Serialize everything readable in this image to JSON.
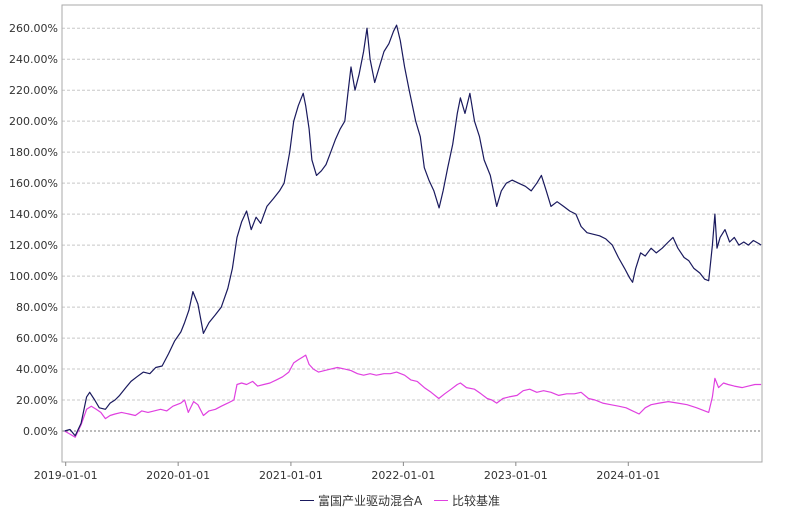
{
  "chart_data": {
    "type": "line",
    "title": "",
    "xlabel": "",
    "ylabel": "",
    "ylim": [
      -0.2,
      2.75
    ],
    "xlim": [
      "2018-12-20",
      "2025-03-10"
    ],
    "grid": true,
    "legend_position": "bottom-center",
    "x_tick_labels": [
      "2019-01-01",
      "2020-01-01",
      "2021-01-01",
      "2022-01-01",
      "2023-01-01",
      "2024-01-01"
    ],
    "y_tick_labels": [
      "0.00%",
      "20.00%",
      "40.00%",
      "60.00%",
      "80.00%",
      "100.00%",
      "120.00%",
      "140.00%",
      "160.00%",
      "180.00%",
      "200.00%",
      "220.00%",
      "240.00%",
      "260.00%"
    ],
    "series": [
      {
        "name": "富国产业驱动混合A",
        "color": "#1a1a5e",
        "points": [
          [
            "2018-12-28",
            0.0
          ],
          [
            "2019-01-15",
            0.01
          ],
          [
            "2019-02-01",
            -0.03
          ],
          [
            "2019-02-20",
            0.05
          ],
          [
            "2019-03-10",
            0.22
          ],
          [
            "2019-03-20",
            0.25
          ],
          [
            "2019-04-05",
            0.2
          ],
          [
            "2019-04-20",
            0.15
          ],
          [
            "2019-05-10",
            0.14
          ],
          [
            "2019-05-25",
            0.18
          ],
          [
            "2019-06-10",
            0.2
          ],
          [
            "2019-06-25",
            0.23
          ],
          [
            "2019-07-15",
            0.28
          ],
          [
            "2019-08-01",
            0.32
          ],
          [
            "2019-08-20",
            0.35
          ],
          [
            "2019-09-10",
            0.38
          ],
          [
            "2019-10-01",
            0.37
          ],
          [
            "2019-10-20",
            0.41
          ],
          [
            "2019-11-10",
            0.42
          ],
          [
            "2019-12-01",
            0.5
          ],
          [
            "2019-12-20",
            0.58
          ],
          [
            "2020-01-10",
            0.64
          ],
          [
            "2020-01-22",
            0.7
          ],
          [
            "2020-02-05",
            0.78
          ],
          [
            "2020-02-18",
            0.9
          ],
          [
            "2020-03-05",
            0.82
          ],
          [
            "2020-03-23",
            0.63
          ],
          [
            "2020-04-10",
            0.7
          ],
          [
            "2020-05-01",
            0.75
          ],
          [
            "2020-05-20",
            0.8
          ],
          [
            "2020-06-10",
            0.92
          ],
          [
            "2020-06-25",
            1.05
          ],
          [
            "2020-07-10",
            1.25
          ],
          [
            "2020-07-25",
            1.35
          ],
          [
            "2020-08-10",
            1.42
          ],
          [
            "2020-08-25",
            1.3
          ],
          [
            "2020-09-10",
            1.38
          ],
          [
            "2020-09-25",
            1.34
          ],
          [
            "2020-10-15",
            1.45
          ],
          [
            "2020-11-05",
            1.5
          ],
          [
            "2020-11-25",
            1.55
          ],
          [
            "2020-12-10",
            1.6
          ],
          [
            "2020-12-28",
            1.8
          ],
          [
            "2021-01-10",
            2.0
          ],
          [
            "2021-01-25",
            2.1
          ],
          [
            "2021-02-10",
            2.18
          ],
          [
            "2021-02-18",
            2.1
          ],
          [
            "2021-03-01",
            1.95
          ],
          [
            "2021-03-10",
            1.75
          ],
          [
            "2021-03-25",
            1.65
          ],
          [
            "2021-04-10",
            1.68
          ],
          [
            "2021-04-25",
            1.72
          ],
          [
            "2021-05-10",
            1.8
          ],
          [
            "2021-05-25",
            1.88
          ],
          [
            "2021-06-10",
            1.95
          ],
          [
            "2021-06-25",
            2.0
          ],
          [
            "2021-07-05",
            2.18
          ],
          [
            "2021-07-15",
            2.35
          ],
          [
            "2021-07-28",
            2.2
          ],
          [
            "2021-08-10",
            2.3
          ],
          [
            "2021-08-25",
            2.45
          ],
          [
            "2021-09-05",
            2.6
          ],
          [
            "2021-09-15",
            2.4
          ],
          [
            "2021-09-30",
            2.25
          ],
          [
            "2021-10-15",
            2.35
          ],
          [
            "2021-10-30",
            2.45
          ],
          [
            "2021-11-15",
            2.5
          ],
          [
            "2021-11-30",
            2.58
          ],
          [
            "2021-12-10",
            2.62
          ],
          [
            "2021-12-22",
            2.52
          ],
          [
            "2022-01-05",
            2.35
          ],
          [
            "2022-01-20",
            2.2
          ],
          [
            "2022-02-10",
            2.0
          ],
          [
            "2022-02-25",
            1.9
          ],
          [
            "2022-03-10",
            1.7
          ],
          [
            "2022-03-25",
            1.62
          ],
          [
            "2022-04-10",
            1.55
          ],
          [
            "2022-04-27",
            1.44
          ],
          [
            "2022-05-10",
            1.55
          ],
          [
            "2022-05-25",
            1.7
          ],
          [
            "2022-06-10",
            1.85
          ],
          [
            "2022-06-25",
            2.05
          ],
          [
            "2022-07-05",
            2.15
          ],
          [
            "2022-07-20",
            2.05
          ],
          [
            "2022-08-05",
            2.18
          ],
          [
            "2022-08-20",
            2.0
          ],
          [
            "2022-09-05",
            1.9
          ],
          [
            "2022-09-20",
            1.75
          ],
          [
            "2022-10-10",
            1.65
          ],
          [
            "2022-10-31",
            1.45
          ],
          [
            "2022-11-15",
            1.55
          ],
          [
            "2022-12-01",
            1.6
          ],
          [
            "2022-12-20",
            1.62
          ],
          [
            "2023-01-10",
            1.6
          ],
          [
            "2023-02-01",
            1.58
          ],
          [
            "2023-02-20",
            1.55
          ],
          [
            "2023-03-10",
            1.6
          ],
          [
            "2023-03-25",
            1.65
          ],
          [
            "2023-04-10",
            1.55
          ],
          [
            "2023-04-25",
            1.45
          ],
          [
            "2023-05-15",
            1.48
          ],
          [
            "2023-06-05",
            1.45
          ],
          [
            "2023-06-25",
            1.42
          ],
          [
            "2023-07-15",
            1.4
          ],
          [
            "2023-08-01",
            1.32
          ],
          [
            "2023-08-20",
            1.28
          ],
          [
            "2023-09-10",
            1.27
          ],
          [
            "2023-09-30",
            1.26
          ],
          [
            "2023-10-20",
            1.24
          ],
          [
            "2023-11-10",
            1.2
          ],
          [
            "2023-11-30",
            1.12
          ],
          [
            "2023-12-20",
            1.05
          ],
          [
            "2024-01-05",
            0.99
          ],
          [
            "2024-01-15",
            0.96
          ],
          [
            "2024-01-25",
            1.05
          ],
          [
            "2024-02-10",
            1.15
          ],
          [
            "2024-02-25",
            1.13
          ],
          [
            "2024-03-15",
            1.18
          ],
          [
            "2024-04-01",
            1.15
          ],
          [
            "2024-04-20",
            1.18
          ],
          [
            "2024-05-10",
            1.22
          ],
          [
            "2024-05-25",
            1.25
          ],
          [
            "2024-06-10",
            1.18
          ],
          [
            "2024-06-30",
            1.12
          ],
          [
            "2024-07-15",
            1.1
          ],
          [
            "2024-08-01",
            1.05
          ],
          [
            "2024-08-20",
            1.02
          ],
          [
            "2024-09-05",
            0.98
          ],
          [
            "2024-09-18",
            0.97
          ],
          [
            "2024-09-30",
            1.2
          ],
          [
            "2024-10-08",
            1.4
          ],
          [
            "2024-10-15",
            1.18
          ],
          [
            "2024-10-25",
            1.25
          ],
          [
            "2024-11-10",
            1.3
          ],
          [
            "2024-11-25",
            1.22
          ],
          [
            "2024-12-10",
            1.25
          ],
          [
            "2024-12-25",
            1.2
          ],
          [
            "2025-01-10",
            1.22
          ],
          [
            "2025-01-25",
            1.2
          ],
          [
            "2025-02-10",
            1.23
          ],
          [
            "2025-02-28",
            1.21
          ],
          [
            "2025-03-07",
            1.2
          ]
        ]
      },
      {
        "name": "比较基准",
        "color": "#e040e0",
        "points": [
          [
            "2018-12-28",
            0.0
          ],
          [
            "2019-01-15",
            -0.02
          ],
          [
            "2019-02-01",
            -0.04
          ],
          [
            "2019-02-20",
            0.04
          ],
          [
            "2019-03-10",
            0.14
          ],
          [
            "2019-03-25",
            0.16
          ],
          [
            "2019-04-10",
            0.14
          ],
          [
            "2019-04-25",
            0.12
          ],
          [
            "2019-05-10",
            0.08
          ],
          [
            "2019-05-25",
            0.1
          ],
          [
            "2019-06-10",
            0.11
          ],
          [
            "2019-07-01",
            0.12
          ],
          [
            "2019-07-25",
            0.11
          ],
          [
            "2019-08-15",
            0.1
          ],
          [
            "2019-09-05",
            0.13
          ],
          [
            "2019-09-25",
            0.12
          ],
          [
            "2019-10-15",
            0.13
          ],
          [
            "2019-11-05",
            0.14
          ],
          [
            "2019-11-25",
            0.13
          ],
          [
            "2019-12-15",
            0.16
          ],
          [
            "2020-01-10",
            0.18
          ],
          [
            "2020-01-22",
            0.2
          ],
          [
            "2020-02-03",
            0.12
          ],
          [
            "2020-02-20",
            0.19
          ],
          [
            "2020-03-05",
            0.17
          ],
          [
            "2020-03-23",
            0.1
          ],
          [
            "2020-04-10",
            0.13
          ],
          [
            "2020-05-01",
            0.14
          ],
          [
            "2020-05-20",
            0.16
          ],
          [
            "2020-06-10",
            0.18
          ],
          [
            "2020-06-30",
            0.2
          ],
          [
            "2020-07-10",
            0.3
          ],
          [
            "2020-07-25",
            0.31
          ],
          [
            "2020-08-10",
            0.3
          ],
          [
            "2020-08-30",
            0.32
          ],
          [
            "2020-09-15",
            0.29
          ],
          [
            "2020-10-05",
            0.3
          ],
          [
            "2020-10-25",
            0.31
          ],
          [
            "2020-11-15",
            0.33
          ],
          [
            "2020-12-05",
            0.35
          ],
          [
            "2020-12-25",
            0.38
          ],
          [
            "2021-01-10",
            0.44
          ],
          [
            "2021-01-25",
            0.46
          ],
          [
            "2021-02-10",
            0.48
          ],
          [
            "2021-02-18",
            0.49
          ],
          [
            "2021-03-01",
            0.43
          ],
          [
            "2021-03-15",
            0.4
          ],
          [
            "2021-04-01",
            0.38
          ],
          [
            "2021-04-20",
            0.39
          ],
          [
            "2021-05-10",
            0.4
          ],
          [
            "2021-06-01",
            0.41
          ],
          [
            "2021-06-25",
            0.4
          ],
          [
            "2021-07-15",
            0.39
          ],
          [
            "2021-08-05",
            0.37
          ],
          [
            "2021-08-25",
            0.36
          ],
          [
            "2021-09-15",
            0.37
          ],
          [
            "2021-10-05",
            0.36
          ],
          [
            "2021-10-30",
            0.37
          ],
          [
            "2021-11-20",
            0.37
          ],
          [
            "2021-12-10",
            0.38
          ],
          [
            "2022-01-05",
            0.36
          ],
          [
            "2022-01-25",
            0.33
          ],
          [
            "2022-02-15",
            0.32
          ],
          [
            "2022-03-10",
            0.28
          ],
          [
            "2022-04-01",
            0.25
          ],
          [
            "2022-04-26",
            0.21
          ],
          [
            "2022-05-15",
            0.24
          ],
          [
            "2022-06-05",
            0.27
          ],
          [
            "2022-06-25",
            0.3
          ],
          [
            "2022-07-05",
            0.31
          ],
          [
            "2022-07-25",
            0.28
          ],
          [
            "2022-08-20",
            0.27
          ],
          [
            "2022-09-10",
            0.24
          ],
          [
            "2022-09-30",
            0.21
          ],
          [
            "2022-10-15",
            0.2
          ],
          [
            "2022-10-31",
            0.18
          ],
          [
            "2022-11-20",
            0.21
          ],
          [
            "2022-12-10",
            0.22
          ],
          [
            "2023-01-05",
            0.23
          ],
          [
            "2023-01-25",
            0.26
          ],
          [
            "2023-02-15",
            0.27
          ],
          [
            "2023-03-10",
            0.25
          ],
          [
            "2023-04-01",
            0.26
          ],
          [
            "2023-04-25",
            0.25
          ],
          [
            "2023-05-20",
            0.23
          ],
          [
            "2023-06-15",
            0.24
          ],
          [
            "2023-07-10",
            0.24
          ],
          [
            "2023-08-01",
            0.25
          ],
          [
            "2023-08-25",
            0.21
          ],
          [
            "2023-09-15",
            0.2
          ],
          [
            "2023-10-10",
            0.18
          ],
          [
            "2023-11-05",
            0.17
          ],
          [
            "2023-12-01",
            0.16
          ],
          [
            "2023-12-25",
            0.15
          ],
          [
            "2024-01-15",
            0.13
          ],
          [
            "2024-02-05",
            0.11
          ],
          [
            "2024-02-25",
            0.15
          ],
          [
            "2024-03-15",
            0.17
          ],
          [
            "2024-04-10",
            0.18
          ],
          [
            "2024-05-10",
            0.19
          ],
          [
            "2024-06-10",
            0.18
          ],
          [
            "2024-07-10",
            0.17
          ],
          [
            "2024-08-10",
            0.15
          ],
          [
            "2024-09-18",
            0.12
          ],
          [
            "2024-09-30",
            0.22
          ],
          [
            "2024-10-08",
            0.34
          ],
          [
            "2024-10-20",
            0.28
          ],
          [
            "2024-11-05",
            0.31
          ],
          [
            "2024-11-20",
            0.3
          ],
          [
            "2024-12-10",
            0.29
          ],
          [
            "2025-01-05",
            0.28
          ],
          [
            "2025-01-25",
            0.29
          ],
          [
            "2025-02-15",
            0.3
          ],
          [
            "2025-03-07",
            0.3
          ]
        ]
      }
    ]
  }
}
